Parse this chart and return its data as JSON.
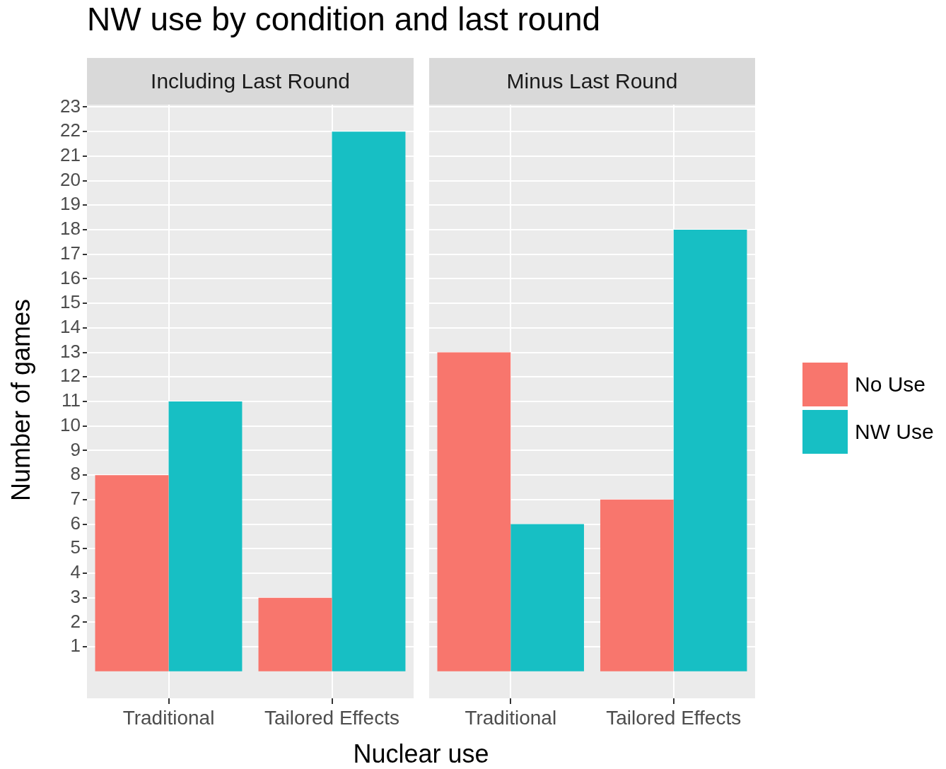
{
  "chart_data": [
    {
      "type": "bar",
      "title": "NW use by condition and last round",
      "subtitle": "Including Last Round",
      "xlabel": "Nuclear use",
      "ylabel": "Number of games",
      "categories": [
        "Traditional",
        "Tailored Effects"
      ],
      "series": [
        {
          "name": "No Use",
          "color": "#f8766d",
          "values": [
            8,
            3
          ]
        },
        {
          "name": "NW Use",
          "color": "#17bfc4",
          "values": [
            11,
            22
          ]
        }
      ],
      "ylim": [
        -1.1,
        23.1
      ],
      "yticks": [
        1,
        2,
        3,
        4,
        5,
        6,
        7,
        8,
        9,
        10,
        11,
        12,
        13,
        14,
        15,
        16,
        17,
        18,
        19,
        20,
        21,
        22,
        23
      ],
      "grid": true,
      "legend": "right"
    },
    {
      "type": "bar",
      "subtitle": "Minus Last Round",
      "categories": [
        "Traditional",
        "Tailored Effects"
      ],
      "series": [
        {
          "color": "#f8766d",
          "values": [
            13,
            7
          ]
        },
        {
          "color": "#17bfc4",
          "values": [
            6,
            18
          ]
        }
      ],
      "ylim": [
        -1.1,
        23.1
      ],
      "yticks": [
        1,
        2,
        3,
        4,
        5,
        6,
        7,
        8,
        9,
        10,
        11,
        12,
        13,
        14,
        15,
        16,
        17,
        18,
        19,
        20,
        21,
        22,
        23
      ],
      "grid": true,
      "tick_labels": "x"
    }
  ]
}
